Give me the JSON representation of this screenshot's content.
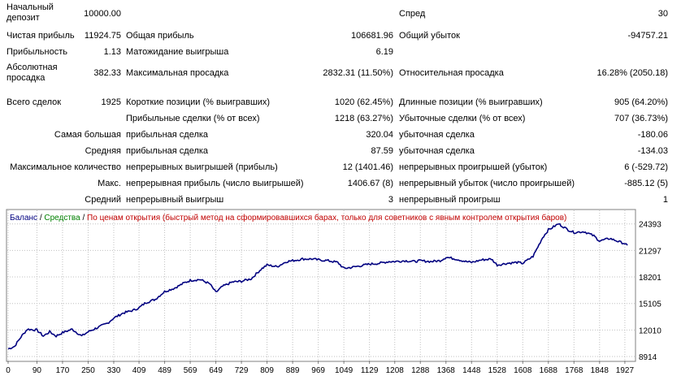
{
  "report": {
    "initial_deposit": {
      "label": "Начальный депозит",
      "value": "10000.00"
    },
    "spread": {
      "label": "Спред",
      "value": "30"
    },
    "net_profit": {
      "label": "Чистая прибыль",
      "value": "11924.75"
    },
    "gross_profit": {
      "label": "Общая прибыль",
      "value": "106681.96"
    },
    "gross_loss": {
      "label": "Общий убыток",
      "value": "-94757.21"
    },
    "profit_factor": {
      "label": "Прибыльность",
      "value": "1.13"
    },
    "expected_payoff": {
      "label": "Матожидание выигрыша",
      "value": "6.19"
    },
    "absolute_drawdown": {
      "label": "Абсолютная просадка",
      "value": "382.33"
    },
    "maximal_drawdown": {
      "label": "Максимальная просадка",
      "value": "2832.31 (11.50%)"
    },
    "relative_drawdown": {
      "label": "Относительная просадка",
      "value": "16.28% (2050.18)"
    },
    "total_trades": {
      "label": "Всего сделок",
      "value": "1925"
    },
    "short_positions": {
      "label": "Короткие позиции (% выигравших)",
      "value": "1020 (62.45%)"
    },
    "long_positions": {
      "label": "Длинные позиции (% выигравших)",
      "value": "905 (64.20%)"
    },
    "profit_trades": {
      "label": "Прибыльные сделки (% от всех)",
      "value": "1218 (63.27%)"
    },
    "loss_trades": {
      "label": "Убыточные сделки (% от всех)",
      "value": "707 (36.73%)"
    },
    "largest": {
      "label": "Самая большая",
      "profit_label": "прибыльная сделка",
      "profit_value": "320.04",
      "loss_label": "убыточная сделка",
      "loss_value": "-180.06"
    },
    "average": {
      "label": "Средняя",
      "profit_label": "прибыльная сделка",
      "profit_value": "87.59",
      "loss_label": "убыточная сделка",
      "loss_value": "-134.03"
    },
    "max_count": {
      "label": "Максимальное количество",
      "wins_label": "непрерывных выигрышей (прибыль)",
      "wins_value": "12 (1401.46)",
      "losses_label": "непрерывных проигрышей (убыток)",
      "losses_value": "6 (-529.72)"
    },
    "max_value": {
      "label": "Макс.",
      "wins_label": "непрерывная прибыль (число выигрышей)",
      "wins_value": "1406.67 (8)",
      "losses_label": "непрерывный убыток (число проигрышей)",
      "losses_value": "-885.12 (5)"
    },
    "avg_consec": {
      "label": "Средний",
      "wins_label": "непрерывный выигрыш",
      "wins_value": "3",
      "losses_label": "непрерывный проигрыш",
      "losses_value": "1"
    }
  },
  "chart_data": {
    "type": "line",
    "legend": {
      "balance": "Баланс",
      "sep1": " / ",
      "equity": "Средства",
      "sep2": " / ",
      "mode": "По ценам открытия (быстрый метод на сформировавшихся барах, только для советников с явным контролем открытия баров)"
    },
    "x_ticks": [
      0,
      90,
      170,
      250,
      330,
      409,
      489,
      569,
      649,
      729,
      809,
      889,
      969,
      1049,
      1129,
      1208,
      1288,
      1368,
      1448,
      1528,
      1608,
      1688,
      1768,
      1848,
      1927
    ],
    "y_ticks": [
      8914,
      12010,
      15105,
      18201,
      21297,
      24393
    ],
    "xlim": [
      0,
      1945
    ],
    "ylim": [
      8914,
      25600
    ],
    "colors": {
      "balance": "#000080",
      "equity": "#008000",
      "mode": "#c00000",
      "grid": "#c0c0c0"
    },
    "series": [
      {
        "name": "Баланс",
        "x": [
          0,
          20,
          40,
          60,
          90,
          110,
          130,
          150,
          170,
          200,
          230,
          250,
          280,
          310,
          330,
          360,
          390,
          409,
          430,
          460,
          489,
          520,
          550,
          569,
          600,
          630,
          649,
          670,
          700,
          729,
          760,
          790,
          809,
          840,
          870,
          889,
          920,
          950,
          969,
          1000,
          1030,
          1049,
          1070,
          1100,
          1129,
          1160,
          1190,
          1208,
          1240,
          1270,
          1288,
          1320,
          1350,
          1368,
          1400,
          1430,
          1448,
          1480,
          1510,
          1528,
          1560,
          1590,
          1608,
          1640,
          1670,
          1688,
          1720,
          1750,
          1768,
          1800,
          1830,
          1848,
          1880,
          1910,
          1927,
          1935
        ],
        "y": [
          9800,
          10100,
          11200,
          12100,
          12000,
          11300,
          11800,
          11300,
          11700,
          12100,
          11300,
          11800,
          12300,
          12800,
          13400,
          14000,
          14300,
          14600,
          15200,
          15600,
          16500,
          16900,
          17500,
          17800,
          17900,
          17400,
          16400,
          17100,
          17600,
          17700,
          18000,
          19100,
          19600,
          19400,
          20000,
          20100,
          20300,
          20300,
          20200,
          20100,
          19900,
          19200,
          19300,
          19500,
          19700,
          19800,
          20000,
          20000,
          20100,
          20000,
          20100,
          20000,
          20100,
          20500,
          20300,
          20000,
          19900,
          20200,
          20300,
          19600,
          19800,
          19900,
          19800,
          20600,
          22800,
          23700,
          24400,
          23700,
          23400,
          23500,
          23000,
          22400,
          22700,
          22300,
          22100,
          21900
        ]
      }
    ]
  }
}
